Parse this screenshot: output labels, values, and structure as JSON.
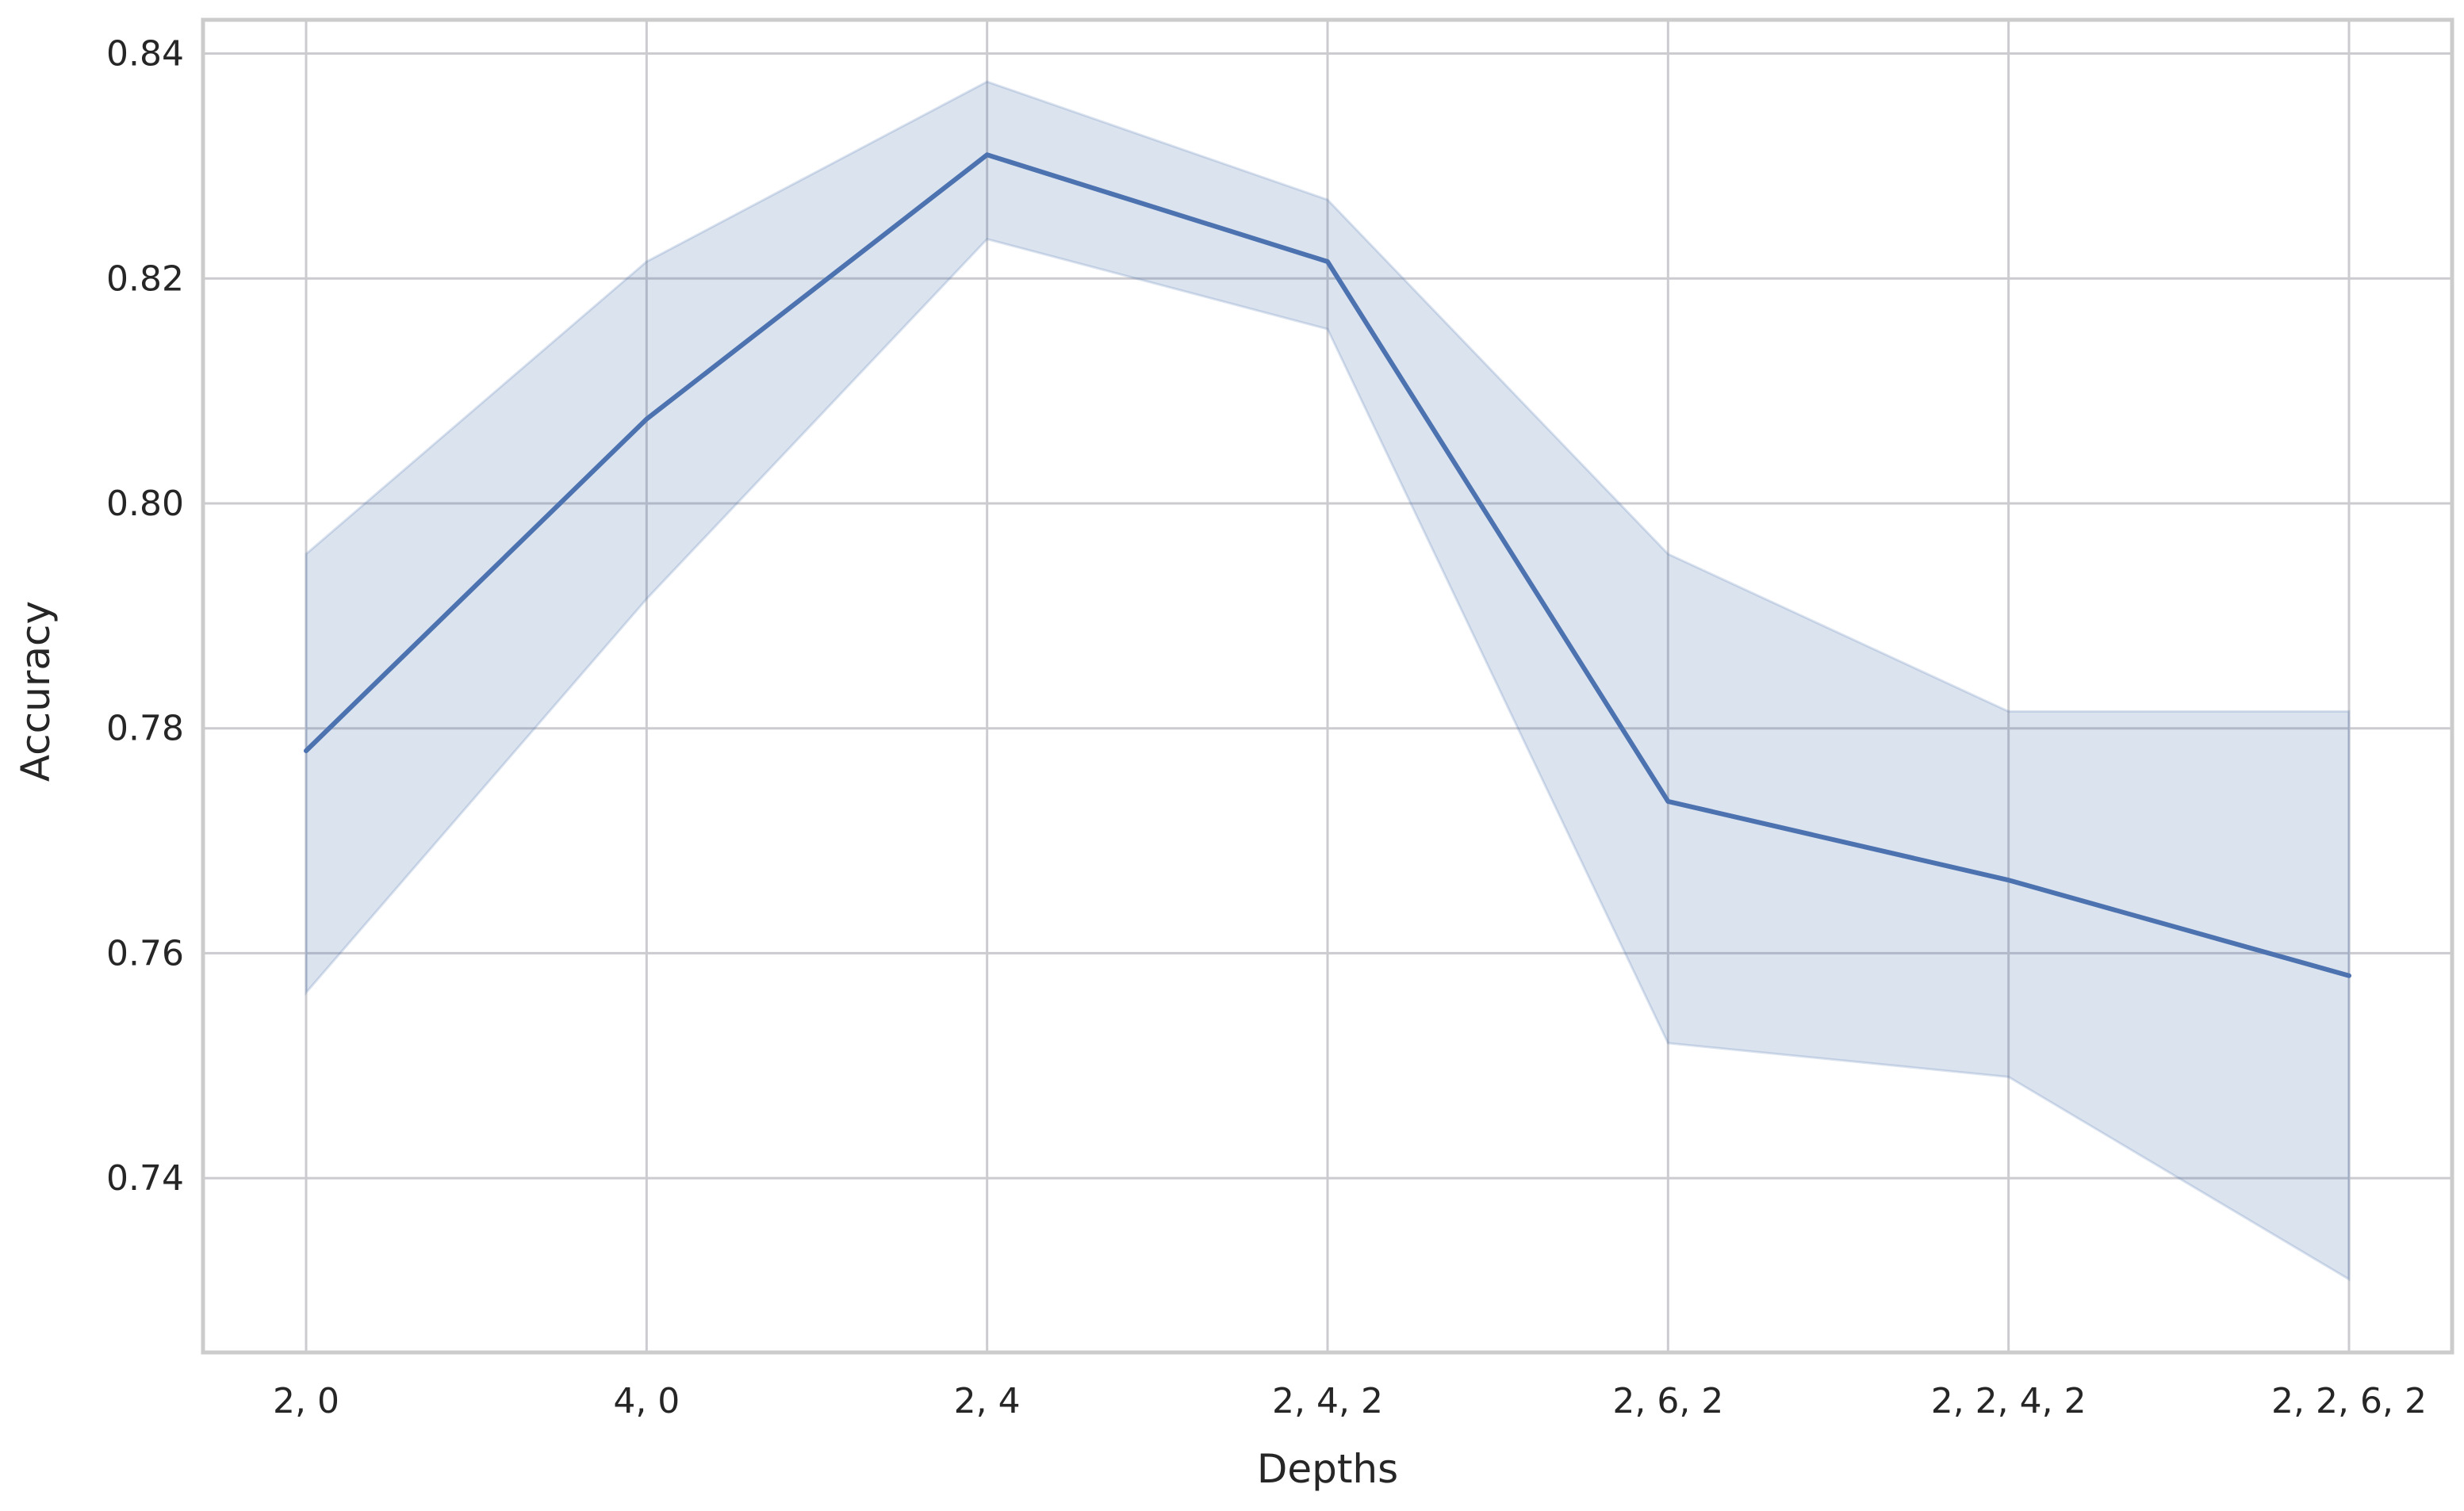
{
  "chart_data": {
    "type": "line",
    "title": "",
    "xlabel": "Depths",
    "ylabel": "Accuracy",
    "categories": [
      "2, 0",
      "4, 0",
      "2, 4",
      "2, 4, 2",
      "2, 6, 2",
      "2, 2, 4, 2",
      "2, 2, 6, 2"
    ],
    "series": [
      {
        "values": [
          0.778,
          0.8075,
          0.831,
          0.8215,
          0.7735,
          0.7665,
          0.758
        ],
        "ci_lower": [
          0.7565,
          0.7915,
          0.8235,
          0.8155,
          0.752,
          0.749,
          0.731
        ],
        "ci_upper": [
          0.7955,
          0.8215,
          0.8375,
          0.827,
          0.7955,
          0.7815,
          0.7815
        ]
      }
    ],
    "ylim": [
      0.7245,
      0.843
    ],
    "yticks": [
      0.74,
      0.76,
      0.78,
      0.8,
      0.82,
      0.84
    ],
    "ytick_labels": [
      "0.74",
      "0.76",
      "0.78",
      "0.80",
      "0.82",
      "0.84"
    ],
    "grid": true,
    "legend": "none",
    "colors": {
      "line": "#4c72b0",
      "band": "#4c72b0",
      "grid": "#cbcbd0",
      "spine": "#cccccc"
    }
  }
}
